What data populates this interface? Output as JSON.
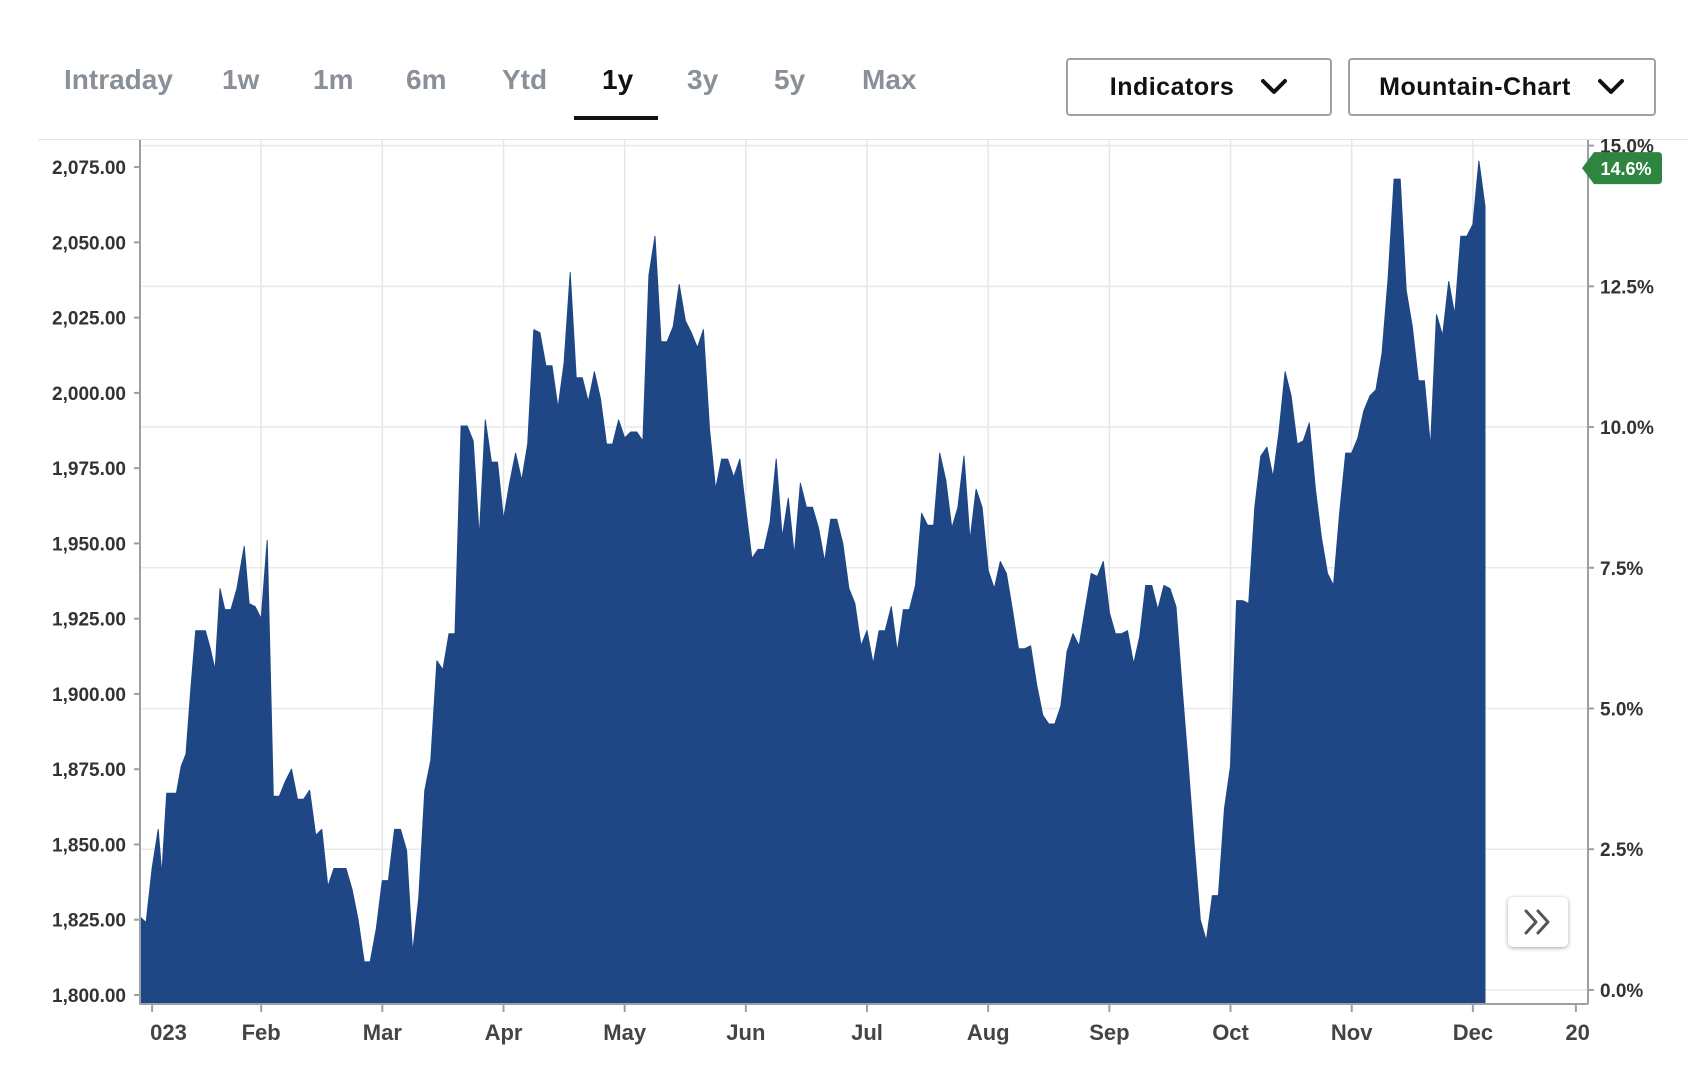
{
  "tabs": [
    {
      "label": "Intraday",
      "active": false
    },
    {
      "label": "1w",
      "active": false
    },
    {
      "label": "1m",
      "active": false
    },
    {
      "label": "6m",
      "active": false
    },
    {
      "label": "Ytd",
      "active": false
    },
    {
      "label": "1y",
      "active": true
    },
    {
      "label": "3y",
      "active": false
    },
    {
      "label": "5y",
      "active": false
    },
    {
      "label": "Max",
      "active": false
    }
  ],
  "controls": {
    "indicators_label": "Indicators",
    "chart_type_label": "Mountain-Chart",
    "expand_icon": "double-chevron-right-icon",
    "dropdown_icon": "chevron-down-icon"
  },
  "colors": {
    "area_fill": "#1f4785",
    "badge": "#2e8540",
    "active_tab": "#111111",
    "inactive_tab": "#8a9097"
  },
  "chart_data": {
    "type": "area",
    "x_tick_labels": [
      "023",
      "Feb",
      "Mar",
      "Apr",
      "May",
      "Jun",
      "Jul",
      "Aug",
      "Sep",
      "Oct",
      "Nov",
      "Dec",
      "20"
    ],
    "y_left_tick_labels": [
      "2,075.00",
      "2,050.00",
      "2,025.00",
      "2,000.00",
      "1,975.00",
      "1,950.00",
      "1,925.00",
      "1,900.00",
      "1,875.00",
      "1,850.00",
      "1,825.00",
      "1,800.00"
    ],
    "y_left_ticks": [
      2075,
      2050,
      2025,
      2000,
      1975,
      1950,
      1925,
      1900,
      1875,
      1850,
      1825,
      1800
    ],
    "y_right_tick_labels": [
      "15.0%",
      "12.5%",
      "10.0%",
      "7.5%",
      "5.0%",
      "2.5%",
      "0.0%"
    ],
    "y_right_ticks": [
      15.0,
      12.5,
      10.0,
      7.5,
      5.0,
      2.5,
      0.0
    ],
    "ylim": [
      1797,
      2084
    ],
    "y_right_lim": [
      -0.25,
      15.1
    ],
    "grid": true,
    "current_change_label": "14.6%",
    "current_change": 14.6,
    "x_ticks_month": [
      0.1,
      1,
      2,
      3,
      4,
      5,
      6,
      7,
      8,
      9,
      10,
      11,
      11.85
    ],
    "xlim": [
      0,
      11.95
    ],
    "series": [
      {
        "points": [
          [
            0.0,
            1826
          ],
          [
            0.05,
            1824
          ],
          [
            0.1,
            1842
          ],
          [
            0.15,
            1855
          ],
          [
            0.18,
            1840
          ],
          [
            0.22,
            1867
          ],
          [
            0.3,
            1867
          ],
          [
            0.34,
            1876
          ],
          [
            0.38,
            1880
          ],
          [
            0.42,
            1902
          ],
          [
            0.46,
            1921
          ],
          [
            0.5,
            1921
          ],
          [
            0.54,
            1921
          ],
          [
            0.58,
            1915
          ],
          [
            0.62,
            1908
          ],
          [
            0.66,
            1935
          ],
          [
            0.7,
            1928
          ],
          [
            0.75,
            1928
          ],
          [
            0.8,
            1935
          ],
          [
            0.86,
            1949
          ],
          [
            0.9,
            1930
          ],
          [
            0.95,
            1929
          ],
          [
            1.0,
            1925
          ],
          [
            1.05,
            1951
          ],
          [
            1.1,
            1866
          ],
          [
            1.15,
            1866
          ],
          [
            1.2,
            1871
          ],
          [
            1.25,
            1875
          ],
          [
            1.3,
            1865
          ],
          [
            1.35,
            1865
          ],
          [
            1.4,
            1868
          ],
          [
            1.45,
            1853
          ],
          [
            1.5,
            1855
          ],
          [
            1.55,
            1836
          ],
          [
            1.6,
            1842
          ],
          [
            1.7,
            1842
          ],
          [
            1.75,
            1835
          ],
          [
            1.8,
            1825
          ],
          [
            1.85,
            1811
          ],
          [
            1.9,
            1811
          ],
          [
            1.95,
            1822
          ],
          [
            2.0,
            1838
          ],
          [
            2.05,
            1838
          ],
          [
            2.1,
            1855
          ],
          [
            2.15,
            1855
          ],
          [
            2.2,
            1848
          ],
          [
            2.25,
            1814
          ],
          [
            2.3,
            1832
          ],
          [
            2.35,
            1868
          ],
          [
            2.4,
            1878
          ],
          [
            2.45,
            1911
          ],
          [
            2.5,
            1908
          ],
          [
            2.55,
            1920
          ],
          [
            2.6,
            1920
          ],
          [
            2.65,
            1989
          ],
          [
            2.7,
            1989
          ],
          [
            2.75,
            1984
          ],
          [
            2.8,
            1952
          ],
          [
            2.85,
            1991
          ],
          [
            2.9,
            1977
          ],
          [
            2.95,
            1977
          ],
          [
            3.0,
            1958
          ],
          [
            3.05,
            1970
          ],
          [
            3.1,
            1980
          ],
          [
            3.15,
            1971
          ],
          [
            3.2,
            1983
          ],
          [
            3.25,
            2021
          ],
          [
            3.3,
            2020
          ],
          [
            3.35,
            2009
          ],
          [
            3.4,
            2009
          ],
          [
            3.45,
            1995
          ],
          [
            3.5,
            2010
          ],
          [
            3.55,
            2040
          ],
          [
            3.6,
            2005
          ],
          [
            3.65,
            2005
          ],
          [
            3.7,
            1997
          ],
          [
            3.75,
            2007
          ],
          [
            3.8,
            1998
          ],
          [
            3.85,
            1983
          ],
          [
            3.9,
            1983
          ],
          [
            3.95,
            1991
          ],
          [
            4.0,
            1985
          ],
          [
            4.05,
            1987
          ],
          [
            4.1,
            1987
          ],
          [
            4.15,
            1984
          ],
          [
            4.2,
            2039
          ],
          [
            4.25,
            2052
          ],
          [
            4.3,
            2017
          ],
          [
            4.35,
            2017
          ],
          [
            4.4,
            2022
          ],
          [
            4.45,
            2036
          ],
          [
            4.5,
            2024
          ],
          [
            4.55,
            2020
          ],
          [
            4.6,
            2015
          ],
          [
            4.65,
            2021
          ],
          [
            4.7,
            1988
          ],
          [
            4.75,
            1968
          ],
          [
            4.8,
            1978
          ],
          [
            4.85,
            1978
          ],
          [
            4.9,
            1972
          ],
          [
            4.95,
            1978
          ],
          [
            5.0,
            1961
          ],
          [
            5.05,
            1945
          ],
          [
            5.1,
            1948
          ],
          [
            5.15,
            1948
          ],
          [
            5.2,
            1957
          ],
          [
            5.25,
            1978
          ],
          [
            5.3,
            1952
          ],
          [
            5.35,
            1965
          ],
          [
            5.4,
            1946
          ],
          [
            5.45,
            1970
          ],
          [
            5.5,
            1962
          ],
          [
            5.55,
            1962
          ],
          [
            5.6,
            1955
          ],
          [
            5.65,
            1944
          ],
          [
            5.7,
            1958
          ],
          [
            5.75,
            1958
          ],
          [
            5.8,
            1950
          ],
          [
            5.85,
            1935
          ],
          [
            5.9,
            1930
          ],
          [
            5.95,
            1916
          ],
          [
            6.0,
            1921
          ],
          [
            6.05,
            1910
          ],
          [
            6.1,
            1921
          ],
          [
            6.15,
            1921
          ],
          [
            6.2,
            1929
          ],
          [
            6.25,
            1914
          ],
          [
            6.3,
            1928
          ],
          [
            6.35,
            1928
          ],
          [
            6.4,
            1936
          ],
          [
            6.45,
            1960
          ],
          [
            6.5,
            1956
          ],
          [
            6.55,
            1956
          ],
          [
            6.6,
            1980
          ],
          [
            6.65,
            1971
          ],
          [
            6.7,
            1955
          ],
          [
            6.75,
            1962
          ],
          [
            6.8,
            1979
          ],
          [
            6.85,
            1951
          ],
          [
            6.9,
            1968
          ],
          [
            6.95,
            1962
          ],
          [
            7.0,
            1941
          ],
          [
            7.05,
            1935
          ],
          [
            7.1,
            1944
          ],
          [
            7.15,
            1940
          ],
          [
            7.2,
            1928
          ],
          [
            7.25,
            1915
          ],
          [
            7.3,
            1915
          ],
          [
            7.35,
            1916
          ],
          [
            7.4,
            1903
          ],
          [
            7.45,
            1893
          ],
          [
            7.5,
            1890
          ],
          [
            7.55,
            1890
          ],
          [
            7.6,
            1896
          ],
          [
            7.65,
            1914
          ],
          [
            7.7,
            1920
          ],
          [
            7.75,
            1916
          ],
          [
            7.8,
            1928
          ],
          [
            7.85,
            1940
          ],
          [
            7.9,
            1939
          ],
          [
            7.95,
            1944
          ],
          [
            8.0,
            1927
          ],
          [
            8.05,
            1920
          ],
          [
            8.1,
            1920
          ],
          [
            8.15,
            1921
          ],
          [
            8.2,
            1910
          ],
          [
            8.25,
            1919
          ],
          [
            8.3,
            1936
          ],
          [
            8.35,
            1936
          ],
          [
            8.4,
            1928
          ],
          [
            8.45,
            1936
          ],
          [
            8.5,
            1935
          ],
          [
            8.55,
            1929
          ],
          [
            8.6,
            1902
          ],
          [
            8.65,
            1877
          ],
          [
            8.7,
            1850
          ],
          [
            8.75,
            1825
          ],
          [
            8.8,
            1818
          ],
          [
            8.85,
            1833
          ],
          [
            8.9,
            1833
          ],
          [
            8.95,
            1862
          ],
          [
            9.0,
            1876
          ],
          [
            9.05,
            1931
          ],
          [
            9.1,
            1931
          ],
          [
            9.15,
            1930
          ],
          [
            9.2,
            1962
          ],
          [
            9.25,
            1979
          ],
          [
            9.3,
            1982
          ],
          [
            9.35,
            1972
          ],
          [
            9.4,
            1987
          ],
          [
            9.45,
            2007
          ],
          [
            9.5,
            1999
          ],
          [
            9.55,
            1983
          ],
          [
            9.6,
            1984
          ],
          [
            9.65,
            1990
          ],
          [
            9.7,
            1968
          ],
          [
            9.75,
            1952
          ],
          [
            9.8,
            1940
          ],
          [
            9.85,
            1936
          ],
          [
            9.9,
            1960
          ],
          [
            9.95,
            1980
          ],
          [
            10.0,
            1980
          ],
          [
            10.05,
            1985
          ],
          [
            10.1,
            1994
          ],
          [
            10.15,
            1999
          ],
          [
            10.2,
            2001
          ],
          [
            10.25,
            2013
          ],
          [
            10.3,
            2038
          ],
          [
            10.35,
            2071
          ],
          [
            10.4,
            2071
          ],
          [
            10.45,
            2034
          ],
          [
            10.5,
            2022
          ],
          [
            10.55,
            2004
          ],
          [
            10.6,
            2004
          ],
          [
            10.65,
            1982
          ],
          [
            10.7,
            2026
          ],
          [
            10.75,
            2019
          ],
          [
            10.8,
            2037
          ],
          [
            10.85,
            2026
          ],
          [
            10.9,
            2052
          ],
          [
            10.95,
            2052
          ],
          [
            11.0,
            2056
          ],
          [
            11.05,
            2077
          ],
          [
            11.1,
            2062
          ]
        ]
      }
    ]
  }
}
